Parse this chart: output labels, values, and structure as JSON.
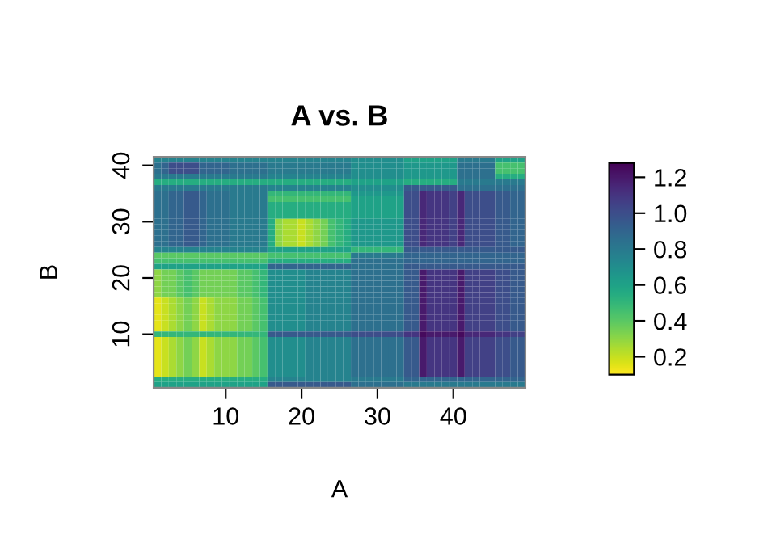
{
  "chart_data": {
    "type": "heatmap",
    "title": "A vs. B",
    "xlabel": "A",
    "ylabel": "B",
    "categories": [
      null,
      null,
      null,
      null,
      null,
      null,
      null,
      null,
      null,
      "10",
      null,
      null,
      null,
      null,
      null,
      null,
      null,
      null,
      null,
      "20",
      null,
      null,
      null,
      null,
      null,
      null,
      null,
      null,
      null,
      "30",
      null,
      null,
      null,
      null,
      null,
      null,
      null,
      null,
      null,
      "40",
      null,
      null,
      null,
      null,
      null,
      null,
      null,
      null,
      null
    ],
    "y_categories": [
      null,
      "40",
      null,
      null,
      null,
      null,
      null,
      null,
      null,
      null,
      null,
      "30",
      null,
      null,
      null,
      null,
      null,
      null,
      null,
      null,
      null,
      "20",
      null,
      null,
      null,
      null,
      null,
      null,
      null,
      null,
      null,
      "10",
      null,
      null,
      null,
      null,
      null,
      null,
      null,
      null,
      null
    ],
    "clim": [
      0.1,
      1.28
    ],
    "cticks": [
      {
        "value": 0.2,
        "label": "0.2"
      },
      {
        "value": 0.4,
        "label": "0.4"
      },
      {
        "value": 0.6,
        "label": "0.6"
      },
      {
        "value": 0.8,
        "label": "0.8"
      },
      {
        "value": 1.0,
        "label": "1.0"
      },
      {
        "value": 1.2,
        "label": "1.2"
      }
    ],
    "cells": [
      [
        0.75,
        0.75,
        0.75,
        0.75,
        0.75,
        0.75,
        0.75,
        0.75,
        0.75,
        0.75,
        0.75,
        0.75,
        0.75,
        0.75,
        0.75,
        0.75,
        0.75,
        0.75,
        0.75,
        0.75,
        0.75,
        0.75,
        0.75,
        0.75,
        0.75,
        0.75,
        0.7,
        0.7,
        0.7,
        0.7,
        0.7,
        0.7,
        0.7,
        0.6,
        0.6,
        0.6,
        0.6,
        0.6,
        0.6,
        0.6,
        0.8,
        0.8,
        0.8,
        0.8,
        0.8,
        0.6,
        0.6,
        0.6,
        0.6
      ],
      [
        0.85,
        0.9,
        1.0,
        1.0,
        1.0,
        1.0,
        0.9,
        0.9,
        0.9,
        0.9,
        0.85,
        0.85,
        0.85,
        0.85,
        0.85,
        0.8,
        0.8,
        0.8,
        0.8,
        0.8,
        0.8,
        0.8,
        0.8,
        0.8,
        0.8,
        0.8,
        0.7,
        0.7,
        0.7,
        0.7,
        0.7,
        0.7,
        0.7,
        0.65,
        0.65,
        0.65,
        0.65,
        0.65,
        0.65,
        0.65,
        0.85,
        0.85,
        0.85,
        0.85,
        0.85,
        0.45,
        0.45,
        0.45,
        0.45
      ],
      [
        0.85,
        0.9,
        1.0,
        1.0,
        1.0,
        1.0,
        0.9,
        0.9,
        0.9,
        0.9,
        0.85,
        0.85,
        0.85,
        0.85,
        0.85,
        0.8,
        0.8,
        0.8,
        0.8,
        0.8,
        0.8,
        0.8,
        0.8,
        0.8,
        0.8,
        0.8,
        0.7,
        0.7,
        0.7,
        0.7,
        0.7,
        0.7,
        0.7,
        0.65,
        0.65,
        0.65,
        0.65,
        0.65,
        0.65,
        0.65,
        0.85,
        0.85,
        0.85,
        0.85,
        0.85,
        0.45,
        0.45,
        0.45,
        0.45
      ],
      [
        0.8,
        0.8,
        0.8,
        0.8,
        0.8,
        0.8,
        0.8,
        0.8,
        0.8,
        0.8,
        0.8,
        0.8,
        0.8,
        0.8,
        0.8,
        0.75,
        0.75,
        0.75,
        0.75,
        0.75,
        0.75,
        0.75,
        0.75,
        0.75,
        0.75,
        0.75,
        0.7,
        0.7,
        0.7,
        0.7,
        0.7,
        0.7,
        0.7,
        0.65,
        0.65,
        0.65,
        0.65,
        0.65,
        0.65,
        0.65,
        0.85,
        0.85,
        0.85,
        0.85,
        0.85,
        0.55,
        0.55,
        0.55,
        0.55
      ],
      [
        0.55,
        0.55,
        0.55,
        0.55,
        0.55,
        0.55,
        0.55,
        0.55,
        0.55,
        0.55,
        0.55,
        0.55,
        0.55,
        0.55,
        0.55,
        0.55,
        0.55,
        0.55,
        0.55,
        0.55,
        0.55,
        0.55,
        0.55,
        0.55,
        0.55,
        0.55,
        0.6,
        0.6,
        0.6,
        0.6,
        0.6,
        0.6,
        0.6,
        0.55,
        0.55,
        0.55,
        0.55,
        0.55,
        0.55,
        0.55,
        0.8,
        0.8,
        0.8,
        0.8,
        0.8,
        0.8,
        0.8,
        0.8,
        0.8
      ],
      [
        0.8,
        0.8,
        0.8,
        0.8,
        0.8,
        0.8,
        0.8,
        0.8,
        0.8,
        0.8,
        0.8,
        0.8,
        0.8,
        0.8,
        0.8,
        0.75,
        0.75,
        0.75,
        0.75,
        0.75,
        0.75,
        0.75,
        0.75,
        0.75,
        0.75,
        0.75,
        0.7,
        0.7,
        0.7,
        0.7,
        0.7,
        0.7,
        0.7,
        0.95,
        0.95,
        0.95,
        0.95,
        0.95,
        0.95,
        0.95,
        0.85,
        0.85,
        0.85,
        0.85,
        0.85,
        0.85,
        0.85,
        0.85,
        0.85
      ],
      [
        0.85,
        0.85,
        0.9,
        0.9,
        0.95,
        0.95,
        0.9,
        0.85,
        0.85,
        0.85,
        0.8,
        0.8,
        0.8,
        0.8,
        0.8,
        0.5,
        0.5,
        0.5,
        0.5,
        0.5,
        0.5,
        0.5,
        0.5,
        0.5,
        0.5,
        0.5,
        0.65,
        0.65,
        0.65,
        0.65,
        0.65,
        0.65,
        0.65,
        1.0,
        1.0,
        1.15,
        1.1,
        1.1,
        1.1,
        1.05,
        1.15,
        1.0,
        1.0,
        1.0,
        1.0,
        0.95,
        0.95,
        0.9,
        0.9
      ],
      [
        0.85,
        0.85,
        0.9,
        0.9,
        0.95,
        0.95,
        0.9,
        0.85,
        0.85,
        0.85,
        0.8,
        0.8,
        0.8,
        0.8,
        0.8,
        0.45,
        0.45,
        0.45,
        0.45,
        0.45,
        0.45,
        0.45,
        0.45,
        0.45,
        0.45,
        0.45,
        0.6,
        0.6,
        0.6,
        0.6,
        0.6,
        0.6,
        0.6,
        1.0,
        1.0,
        1.15,
        1.1,
        1.1,
        1.1,
        1.05,
        1.15,
        1.0,
        1.0,
        1.0,
        1.0,
        0.95,
        0.95,
        0.9,
        0.9
      ],
      [
        0.85,
        0.85,
        0.9,
        0.9,
        0.95,
        0.95,
        0.9,
        0.85,
        0.85,
        0.85,
        0.8,
        0.8,
        0.8,
        0.8,
        0.8,
        0.55,
        0.55,
        0.55,
        0.55,
        0.55,
        0.55,
        0.55,
        0.55,
        0.55,
        0.55,
        0.55,
        0.6,
        0.6,
        0.6,
        0.6,
        0.6,
        0.6,
        0.6,
        1.0,
        1.0,
        1.15,
        1.1,
        1.1,
        1.1,
        1.05,
        1.15,
        1.0,
        1.0,
        1.0,
        1.0,
        0.95,
        0.95,
        0.9,
        0.9
      ],
      [
        0.85,
        0.85,
        0.9,
        0.9,
        0.95,
        0.95,
        0.9,
        0.85,
        0.85,
        0.85,
        0.8,
        0.8,
        0.8,
        0.8,
        0.8,
        0.55,
        0.55,
        0.55,
        0.55,
        0.55,
        0.55,
        0.55,
        0.55,
        0.55,
        0.55,
        0.55,
        0.6,
        0.6,
        0.6,
        0.6,
        0.6,
        0.6,
        0.6,
        1.0,
        1.0,
        1.15,
        1.1,
        1.1,
        1.1,
        1.05,
        1.15,
        1.0,
        1.0,
        1.0,
        1.0,
        0.95,
        0.95,
        0.9,
        0.9
      ],
      [
        0.85,
        0.85,
        0.9,
        0.9,
        0.95,
        0.95,
        0.9,
        0.85,
        0.85,
        0.85,
        0.8,
        0.8,
        0.8,
        0.8,
        0.8,
        0.55,
        0.55,
        0.55,
        0.55,
        0.55,
        0.55,
        0.55,
        0.55,
        0.55,
        0.55,
        0.55,
        0.6,
        0.6,
        0.6,
        0.6,
        0.6,
        0.6,
        0.6,
        1.0,
        1.0,
        1.15,
        1.1,
        1.1,
        1.1,
        1.05,
        1.15,
        1.0,
        1.0,
        1.0,
        1.0,
        0.95,
        0.95,
        0.9,
        0.9
      ],
      [
        0.85,
        0.85,
        0.9,
        0.9,
        0.95,
        0.95,
        0.9,
        0.85,
        0.85,
        0.85,
        0.8,
        0.8,
        0.8,
        0.8,
        0.8,
        0.55,
        0.3,
        0.25,
        0.25,
        0.2,
        0.25,
        0.3,
        0.35,
        0.45,
        0.5,
        0.55,
        0.65,
        0.65,
        0.65,
        0.65,
        0.65,
        0.65,
        0.65,
        1.0,
        1.0,
        1.15,
        1.1,
        1.1,
        1.1,
        1.05,
        1.15,
        1.0,
        1.0,
        1.0,
        1.0,
        0.95,
        0.95,
        0.9,
        0.9
      ],
      [
        0.85,
        0.85,
        0.9,
        0.9,
        0.95,
        0.95,
        0.9,
        0.85,
        0.85,
        0.85,
        0.8,
        0.8,
        0.8,
        0.8,
        0.8,
        0.55,
        0.3,
        0.25,
        0.25,
        0.2,
        0.25,
        0.3,
        0.35,
        0.45,
        0.5,
        0.55,
        0.65,
        0.65,
        0.65,
        0.65,
        0.65,
        0.65,
        0.65,
        1.0,
        1.0,
        1.15,
        1.1,
        1.1,
        1.1,
        1.05,
        1.15,
        1.0,
        1.0,
        1.0,
        1.0,
        0.95,
        0.95,
        0.9,
        0.9
      ],
      [
        0.85,
        0.85,
        0.9,
        0.9,
        0.95,
        0.95,
        0.9,
        0.85,
        0.85,
        0.85,
        0.8,
        0.8,
        0.8,
        0.8,
        0.8,
        0.55,
        0.3,
        0.25,
        0.25,
        0.2,
        0.25,
        0.3,
        0.35,
        0.45,
        0.5,
        0.55,
        0.65,
        0.65,
        0.65,
        0.65,
        0.65,
        0.65,
        0.65,
        1.0,
        1.0,
        1.15,
        1.1,
        1.1,
        1.1,
        1.05,
        1.15,
        1.0,
        1.0,
        1.0,
        1.0,
        0.95,
        0.95,
        0.9,
        0.9
      ],
      [
        0.85,
        0.85,
        0.9,
        0.9,
        0.95,
        0.95,
        0.9,
        0.85,
        0.85,
        0.85,
        0.8,
        0.8,
        0.8,
        0.8,
        0.8,
        0.55,
        0.3,
        0.25,
        0.25,
        0.2,
        0.25,
        0.3,
        0.35,
        0.45,
        0.5,
        0.55,
        0.65,
        0.65,
        0.65,
        0.65,
        0.65,
        0.65,
        0.65,
        1.0,
        1.0,
        1.15,
        1.1,
        1.1,
        1.1,
        1.05,
        1.15,
        1.0,
        1.0,
        1.0,
        1.0,
        0.95,
        0.95,
        0.9,
        0.9
      ],
      [
        0.85,
        0.85,
        0.9,
        0.9,
        0.95,
        0.95,
        0.9,
        0.85,
        0.85,
        0.85,
        0.8,
        0.8,
        0.8,
        0.8,
        0.8,
        0.55,
        0.3,
        0.25,
        0.25,
        0.2,
        0.25,
        0.3,
        0.35,
        0.45,
        0.5,
        0.55,
        0.65,
        0.65,
        0.65,
        0.65,
        0.65,
        0.65,
        0.65,
        1.0,
        1.0,
        1.15,
        1.1,
        1.1,
        1.1,
        1.05,
        1.15,
        1.0,
        1.0,
        1.0,
        1.0,
        0.95,
        0.95,
        0.9,
        0.9
      ],
      [
        0.75,
        0.75,
        0.75,
        0.75,
        0.75,
        0.75,
        0.75,
        0.75,
        0.75,
        0.75,
        0.75,
        0.75,
        0.75,
        0.75,
        0.75,
        0.6,
        0.6,
        0.6,
        0.6,
        0.6,
        0.6,
        0.6,
        0.6,
        0.6,
        0.6,
        0.6,
        0.5,
        0.5,
        0.5,
        0.5,
        0.5,
        0.5,
        0.5,
        0.95,
        0.95,
        0.95,
        0.95,
        0.95,
        0.95,
        0.95,
        0.95,
        0.95,
        0.95,
        0.95,
        0.95,
        0.95,
        0.95,
        0.95,
        0.95
      ],
      [
        0.4,
        0.4,
        0.4,
        0.4,
        0.4,
        0.4,
        0.4,
        0.4,
        0.4,
        0.4,
        0.4,
        0.4,
        0.4,
        0.4,
        0.4,
        0.45,
        0.45,
        0.45,
        0.45,
        0.45,
        0.45,
        0.45,
        0.45,
        0.45,
        0.45,
        0.45,
        0.8,
        0.8,
        0.8,
        0.8,
        0.8,
        0.8,
        0.8,
        0.9,
        0.9,
        0.9,
        0.9,
        0.9,
        0.9,
        0.9,
        0.9,
        0.9,
        0.9,
        0.9,
        0.9,
        0.9,
        0.9,
        0.9,
        0.9
      ],
      [
        0.45,
        0.45,
        0.45,
        0.45,
        0.45,
        0.45,
        0.45,
        0.45,
        0.45,
        0.45,
        0.45,
        0.45,
        0.45,
        0.45,
        0.45,
        0.55,
        0.55,
        0.55,
        0.55,
        0.55,
        0.55,
        0.55,
        0.55,
        0.55,
        0.55,
        0.55,
        0.85,
        0.85,
        0.85,
        0.85,
        0.85,
        0.85,
        0.85,
        0.9,
        0.9,
        0.9,
        0.9,
        0.9,
        0.9,
        0.9,
        0.9,
        0.9,
        0.9,
        0.9,
        0.9,
        0.9,
        0.9,
        0.9,
        0.9
      ],
      [
        0.6,
        0.6,
        0.6,
        0.6,
        0.6,
        0.6,
        0.6,
        0.6,
        0.6,
        0.6,
        0.6,
        0.6,
        0.6,
        0.6,
        0.6,
        0.9,
        0.9,
        0.9,
        0.9,
        0.9,
        0.9,
        0.9,
        0.9,
        0.9,
        0.9,
        0.9,
        0.85,
        0.85,
        0.85,
        0.85,
        0.85,
        0.85,
        0.85,
        0.95,
        0.95,
        0.95,
        0.95,
        0.95,
        0.95,
        0.95,
        0.95,
        0.95,
        0.95,
        0.95,
        0.95,
        0.95,
        0.95,
        0.95,
        0.95
      ],
      [
        0.3,
        0.35,
        0.35,
        0.4,
        0.45,
        0.4,
        0.35,
        0.35,
        0.35,
        0.35,
        0.35,
        0.4,
        0.4,
        0.45,
        0.5,
        0.7,
        0.7,
        0.7,
        0.7,
        0.7,
        0.75,
        0.75,
        0.75,
        0.75,
        0.75,
        0.75,
        0.85,
        0.85,
        0.85,
        0.85,
        0.85,
        0.85,
        0.85,
        0.95,
        0.95,
        1.2,
        1.1,
        1.1,
        1.1,
        1.1,
        1.2,
        1.05,
        1.05,
        1.05,
        1.05,
        1.0,
        1.0,
        0.95,
        0.95
      ],
      [
        0.3,
        0.35,
        0.35,
        0.4,
        0.45,
        0.4,
        0.35,
        0.35,
        0.35,
        0.35,
        0.35,
        0.4,
        0.4,
        0.45,
        0.5,
        0.7,
        0.7,
        0.7,
        0.7,
        0.7,
        0.75,
        0.75,
        0.75,
        0.75,
        0.75,
        0.75,
        0.85,
        0.85,
        0.85,
        0.85,
        0.85,
        0.85,
        0.85,
        0.95,
        0.95,
        1.2,
        1.1,
        1.1,
        1.1,
        1.1,
        1.2,
        1.05,
        1.05,
        1.05,
        1.05,
        1.0,
        1.0,
        0.95,
        0.95
      ],
      [
        0.3,
        0.35,
        0.35,
        0.4,
        0.45,
        0.4,
        0.35,
        0.35,
        0.35,
        0.35,
        0.35,
        0.4,
        0.4,
        0.45,
        0.5,
        0.7,
        0.7,
        0.7,
        0.7,
        0.7,
        0.75,
        0.75,
        0.75,
        0.75,
        0.75,
        0.75,
        0.85,
        0.85,
        0.85,
        0.85,
        0.85,
        0.85,
        0.85,
        0.95,
        0.95,
        1.2,
        1.1,
        1.1,
        1.1,
        1.1,
        1.2,
        1.05,
        1.05,
        1.05,
        1.05,
        1.0,
        1.0,
        0.95,
        0.95
      ],
      [
        0.3,
        0.35,
        0.35,
        0.4,
        0.45,
        0.4,
        0.35,
        0.35,
        0.35,
        0.35,
        0.35,
        0.4,
        0.4,
        0.45,
        0.5,
        0.7,
        0.7,
        0.7,
        0.7,
        0.7,
        0.75,
        0.75,
        0.75,
        0.75,
        0.75,
        0.75,
        0.85,
        0.85,
        0.85,
        0.85,
        0.85,
        0.85,
        0.85,
        0.95,
        0.95,
        1.2,
        1.1,
        1.1,
        1.1,
        1.1,
        1.2,
        1.05,
        1.05,
        1.05,
        1.05,
        1.0,
        1.0,
        0.95,
        0.95
      ],
      [
        0.3,
        0.35,
        0.35,
        0.4,
        0.45,
        0.4,
        0.35,
        0.35,
        0.35,
        0.35,
        0.35,
        0.4,
        0.4,
        0.45,
        0.5,
        0.7,
        0.7,
        0.7,
        0.7,
        0.7,
        0.75,
        0.75,
        0.75,
        0.75,
        0.75,
        0.75,
        0.85,
        0.85,
        0.85,
        0.85,
        0.85,
        0.85,
        0.85,
        0.95,
        0.95,
        1.2,
        1.1,
        1.1,
        1.1,
        1.1,
        1.2,
        1.05,
        1.05,
        1.05,
        1.05,
        1.0,
        1.0,
        0.95,
        0.95
      ],
      [
        0.15,
        0.2,
        0.25,
        0.3,
        0.35,
        0.3,
        0.2,
        0.25,
        0.3,
        0.3,
        0.3,
        0.35,
        0.35,
        0.4,
        0.45,
        0.7,
        0.7,
        0.7,
        0.7,
        0.7,
        0.75,
        0.75,
        0.75,
        0.75,
        0.75,
        0.75,
        0.85,
        0.85,
        0.85,
        0.85,
        0.85,
        0.85,
        0.85,
        0.95,
        0.95,
        1.2,
        1.1,
        1.1,
        1.1,
        1.1,
        1.2,
        1.05,
        1.05,
        1.05,
        1.05,
        1.0,
        1.0,
        0.95,
        0.95
      ],
      [
        0.15,
        0.2,
        0.25,
        0.3,
        0.35,
        0.3,
        0.2,
        0.25,
        0.3,
        0.3,
        0.3,
        0.35,
        0.35,
        0.4,
        0.45,
        0.7,
        0.7,
        0.7,
        0.7,
        0.7,
        0.75,
        0.75,
        0.75,
        0.75,
        0.75,
        0.75,
        0.85,
        0.85,
        0.85,
        0.85,
        0.85,
        0.85,
        0.85,
        0.95,
        0.95,
        1.2,
        1.1,
        1.1,
        1.1,
        1.1,
        1.2,
        1.05,
        1.05,
        1.05,
        1.05,
        1.0,
        1.0,
        0.95,
        0.95
      ],
      [
        0.15,
        0.2,
        0.25,
        0.3,
        0.35,
        0.3,
        0.2,
        0.25,
        0.3,
        0.3,
        0.3,
        0.35,
        0.35,
        0.4,
        0.45,
        0.7,
        0.7,
        0.7,
        0.7,
        0.7,
        0.75,
        0.75,
        0.75,
        0.75,
        0.75,
        0.75,
        0.85,
        0.85,
        0.85,
        0.85,
        0.85,
        0.85,
        0.85,
        0.95,
        0.95,
        1.2,
        1.1,
        1.1,
        1.1,
        1.1,
        1.2,
        1.05,
        1.05,
        1.05,
        1.05,
        1.0,
        1.0,
        0.95,
        0.95
      ],
      [
        0.15,
        0.2,
        0.25,
        0.3,
        0.35,
        0.3,
        0.2,
        0.25,
        0.3,
        0.3,
        0.3,
        0.35,
        0.35,
        0.4,
        0.45,
        0.7,
        0.7,
        0.7,
        0.7,
        0.7,
        0.75,
        0.75,
        0.75,
        0.75,
        0.75,
        0.75,
        0.85,
        0.85,
        0.85,
        0.85,
        0.85,
        0.85,
        0.85,
        0.95,
        0.95,
        1.2,
        1.1,
        1.1,
        1.1,
        1.1,
        1.2,
        1.05,
        1.05,
        1.05,
        1.05,
        1.0,
        1.0,
        0.95,
        0.95
      ],
      [
        0.15,
        0.2,
        0.25,
        0.3,
        0.35,
        0.3,
        0.2,
        0.25,
        0.3,
        0.3,
        0.3,
        0.35,
        0.35,
        0.4,
        0.45,
        0.7,
        0.7,
        0.7,
        0.7,
        0.7,
        0.75,
        0.75,
        0.75,
        0.75,
        0.75,
        0.75,
        0.85,
        0.85,
        0.85,
        0.85,
        0.85,
        0.85,
        0.85,
        0.95,
        0.95,
        1.2,
        1.1,
        1.1,
        1.1,
        1.1,
        1.2,
        1.05,
        1.05,
        1.05,
        1.05,
        1.0,
        1.0,
        0.95,
        0.95
      ],
      [
        0.15,
        0.2,
        0.25,
        0.3,
        0.35,
        0.3,
        0.2,
        0.25,
        0.3,
        0.3,
        0.3,
        0.35,
        0.35,
        0.4,
        0.45,
        0.7,
        0.7,
        0.7,
        0.7,
        0.7,
        0.75,
        0.75,
        0.75,
        0.75,
        0.75,
        0.75,
        0.85,
        0.85,
        0.85,
        0.85,
        0.85,
        0.85,
        0.85,
        0.95,
        0.95,
        1.2,
        1.1,
        1.1,
        1.1,
        1.1,
        1.2,
        1.05,
        1.05,
        1.05,
        1.05,
        1.0,
        1.0,
        0.95,
        0.95
      ],
      [
        0.5,
        0.5,
        0.5,
        0.5,
        0.5,
        0.5,
        0.5,
        0.5,
        0.5,
        0.5,
        0.5,
        0.5,
        0.5,
        0.5,
        0.5,
        0.95,
        0.95,
        0.95,
        0.95,
        0.95,
        0.95,
        0.95,
        0.95,
        0.95,
        0.95,
        0.95,
        1.0,
        1.0,
        1.0,
        1.0,
        1.0,
        1.0,
        1.0,
        1.1,
        1.1,
        1.25,
        1.2,
        1.2,
        1.2,
        1.2,
        1.25,
        1.15,
        1.15,
        1.15,
        1.15,
        1.1,
        1.1,
        1.05,
        1.05
      ],
      [
        0.15,
        0.2,
        0.25,
        0.3,
        0.35,
        0.3,
        0.2,
        0.25,
        0.3,
        0.3,
        0.3,
        0.35,
        0.35,
        0.4,
        0.45,
        0.7,
        0.7,
        0.7,
        0.7,
        0.7,
        0.75,
        0.75,
        0.75,
        0.75,
        0.75,
        0.75,
        0.85,
        0.85,
        0.85,
        0.85,
        0.85,
        0.85,
        0.85,
        0.95,
        0.95,
        1.2,
        1.1,
        1.1,
        1.1,
        1.1,
        1.2,
        1.05,
        1.05,
        1.05,
        1.05,
        1.0,
        1.0,
        0.95,
        0.95
      ],
      [
        0.15,
        0.2,
        0.25,
        0.3,
        0.35,
        0.3,
        0.2,
        0.25,
        0.3,
        0.3,
        0.3,
        0.35,
        0.35,
        0.4,
        0.45,
        0.7,
        0.7,
        0.7,
        0.7,
        0.7,
        0.75,
        0.75,
        0.75,
        0.75,
        0.75,
        0.75,
        0.85,
        0.85,
        0.85,
        0.85,
        0.85,
        0.85,
        0.85,
        0.95,
        0.95,
        1.2,
        1.1,
        1.1,
        1.1,
        1.1,
        1.2,
        1.05,
        1.05,
        1.05,
        1.05,
        1.0,
        1.0,
        0.95,
        0.95
      ],
      [
        0.15,
        0.2,
        0.25,
        0.3,
        0.35,
        0.3,
        0.2,
        0.25,
        0.3,
        0.3,
        0.3,
        0.35,
        0.35,
        0.4,
        0.45,
        0.7,
        0.7,
        0.7,
        0.7,
        0.7,
        0.75,
        0.75,
        0.75,
        0.75,
        0.75,
        0.75,
        0.85,
        0.85,
        0.85,
        0.85,
        0.85,
        0.85,
        0.85,
        0.95,
        0.95,
        1.2,
        1.1,
        1.1,
        1.1,
        1.1,
        1.2,
        1.05,
        1.05,
        1.05,
        1.05,
        1.0,
        1.0,
        0.95,
        0.95
      ],
      [
        0.15,
        0.2,
        0.25,
        0.3,
        0.35,
        0.3,
        0.2,
        0.25,
        0.3,
        0.3,
        0.3,
        0.35,
        0.35,
        0.4,
        0.45,
        0.7,
        0.7,
        0.7,
        0.7,
        0.7,
        0.75,
        0.75,
        0.75,
        0.75,
        0.75,
        0.75,
        0.85,
        0.85,
        0.85,
        0.85,
        0.85,
        0.85,
        0.85,
        0.95,
        0.95,
        1.2,
        1.1,
        1.1,
        1.1,
        1.1,
        1.2,
        1.05,
        1.05,
        1.05,
        1.05,
        1.0,
        1.0,
        0.95,
        0.95
      ],
      [
        0.15,
        0.2,
        0.25,
        0.3,
        0.35,
        0.3,
        0.2,
        0.25,
        0.3,
        0.3,
        0.3,
        0.35,
        0.35,
        0.4,
        0.45,
        0.7,
        0.7,
        0.7,
        0.7,
        0.7,
        0.75,
        0.75,
        0.75,
        0.75,
        0.75,
        0.75,
        0.85,
        0.85,
        0.85,
        0.85,
        0.85,
        0.85,
        0.85,
        0.95,
        0.95,
        1.2,
        1.1,
        1.1,
        1.1,
        1.1,
        1.2,
        1.05,
        1.05,
        1.05,
        1.05,
        1.0,
        1.0,
        0.95,
        0.95
      ],
      [
        0.15,
        0.2,
        0.25,
        0.3,
        0.35,
        0.3,
        0.2,
        0.25,
        0.3,
        0.3,
        0.3,
        0.35,
        0.35,
        0.4,
        0.45,
        0.7,
        0.7,
        0.7,
        0.7,
        0.7,
        0.75,
        0.75,
        0.75,
        0.75,
        0.75,
        0.75,
        0.85,
        0.85,
        0.85,
        0.85,
        0.85,
        0.85,
        0.85,
        0.95,
        0.95,
        1.2,
        1.1,
        1.1,
        1.1,
        1.1,
        1.2,
        1.05,
        1.05,
        1.05,
        1.05,
        1.0,
        1.0,
        0.95,
        0.95
      ],
      [
        0.15,
        0.2,
        0.25,
        0.3,
        0.35,
        0.3,
        0.2,
        0.25,
        0.3,
        0.3,
        0.3,
        0.35,
        0.35,
        0.4,
        0.45,
        0.7,
        0.7,
        0.7,
        0.7,
        0.7,
        0.75,
        0.75,
        0.75,
        0.75,
        0.75,
        0.75,
        0.85,
        0.85,
        0.85,
        0.85,
        0.85,
        0.85,
        0.85,
        0.95,
        0.95,
        1.2,
        1.1,
        1.1,
        1.1,
        1.1,
        1.2,
        1.05,
        1.05,
        1.05,
        1.05,
        1.0,
        1.0,
        0.95,
        0.95
      ],
      [
        0.55,
        0.55,
        0.55,
        0.55,
        0.55,
        0.55,
        0.55,
        0.55,
        0.55,
        0.55,
        0.55,
        0.55,
        0.55,
        0.55,
        0.55,
        0.75,
        0.75,
        0.75,
        0.75,
        0.75,
        0.75,
        0.75,
        0.75,
        0.75,
        0.75,
        0.75,
        0.8,
        0.8,
        0.8,
        0.8,
        0.8,
        0.8,
        0.8,
        0.9,
        0.9,
        0.9,
        0.9,
        0.9,
        0.9,
        0.9,
        0.9,
        0.9,
        0.9,
        0.9,
        0.9,
        0.9,
        0.9,
        0.9,
        0.9
      ],
      [
        0.6,
        0.6,
        0.6,
        0.6,
        0.6,
        0.6,
        0.6,
        0.6,
        0.6,
        0.6,
        0.6,
        0.6,
        0.6,
        0.6,
        0.6,
        0.95,
        0.95,
        0.95,
        0.95,
        0.95,
        0.95,
        0.95,
        0.95,
        0.95,
        0.95,
        0.95,
        0.85,
        0.85,
        0.85,
        0.85,
        0.85,
        0.85,
        0.85,
        0.8,
        0.8,
        0.8,
        0.8,
        0.8,
        0.8,
        0.8,
        0.8,
        0.8,
        0.8,
        0.8,
        0.8,
        0.8,
        0.8,
        0.8,
        0.8
      ]
    ]
  }
}
